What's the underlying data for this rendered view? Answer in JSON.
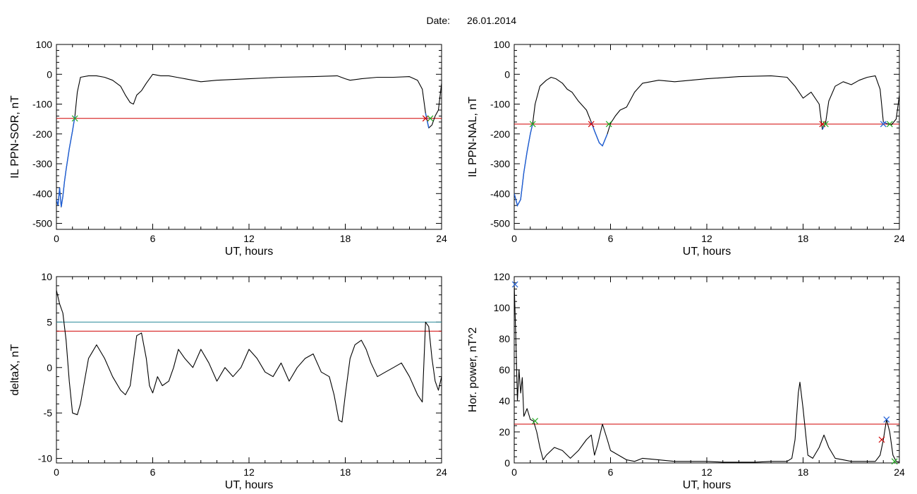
{
  "header": {
    "date_label": "Date:",
    "date_value": "26.01.2014"
  },
  "colors": {
    "trace": "#000000",
    "threshold_red": "#d00000",
    "threshold_cyan": "#2a8a9a",
    "highlight": "#1f5fd6",
    "marker_green": "#22aa22",
    "marker_red": "#d00000",
    "marker_blue": "#1f5fd6"
  },
  "chart_data": [
    {
      "id": "sor",
      "type": "line",
      "ylabel": "IL PPN-SOR, nT",
      "xlabel": "UT, hours",
      "xlim": [
        0,
        24
      ],
      "ylim": [
        -520,
        100
      ],
      "xticks": [
        0,
        6,
        12,
        18,
        24
      ],
      "yticks": [
        100,
        0,
        -100,
        -200,
        -300,
        -400,
        -500
      ],
      "series": [
        {
          "x": [
            0,
            0.1,
            0.2,
            0.3,
            0.4,
            0.5,
            0.6,
            0.8,
            1.0,
            1.15,
            1.3,
            1.5,
            2.0,
            2.5,
            3.0,
            3.5,
            4.0,
            4.3,
            4.6,
            4.8,
            5.0,
            5.3,
            5.6,
            6.0,
            6.5,
            7.0,
            7.5,
            8.0,
            9.0,
            10.0,
            12.0,
            14.0,
            16.0,
            17.5,
            18.0,
            18.3,
            19.0,
            20.0,
            21.0,
            22.0,
            22.5,
            22.8,
            23.0,
            23.2,
            23.4,
            23.6,
            23.8,
            24.0
          ],
          "y": [
            -420,
            -440,
            -380,
            -445,
            -410,
            -360,
            -320,
            -250,
            -190,
            -140,
            -60,
            -10,
            -5,
            -5,
            -10,
            -20,
            -40,
            -70,
            -95,
            -100,
            -70,
            -55,
            -30,
            0,
            -5,
            -5,
            -10,
            -15,
            -25,
            -20,
            -15,
            -10,
            -8,
            -5,
            -15,
            -20,
            -15,
            -10,
            -10,
            -8,
            -20,
            -50,
            -130,
            -180,
            -170,
            -140,
            -120,
            -30
          ]
        }
      ],
      "thresholds": [
        {
          "value": -148,
          "color": "red"
        }
      ],
      "highlight_intervals": [
        [
          0,
          1.15
        ],
        [
          23.0,
          23.3
        ]
      ],
      "markers": [
        {
          "x": 1.15,
          "y": -148,
          "color": "green"
        },
        {
          "x": 23.0,
          "y": -148,
          "color": "red"
        },
        {
          "x": 23.3,
          "y": -148,
          "color": "green"
        }
      ]
    },
    {
      "id": "nal",
      "type": "line",
      "ylabel": "IL PPN-NAL, nT",
      "xlabel": "UT, hours",
      "xlim": [
        0,
        24
      ],
      "ylim": [
        -520,
        100
      ],
      "xticks": [
        0,
        6,
        12,
        18,
        24
      ],
      "yticks": [
        100,
        0,
        -100,
        -200,
        -300,
        -400,
        -500
      ],
      "series": [
        {
          "x": [
            0,
            0.2,
            0.4,
            0.6,
            0.8,
            1.0,
            1.15,
            1.3,
            1.6,
            2.0,
            2.3,
            2.6,
            3.0,
            3.3,
            3.6,
            4.0,
            4.5,
            4.8,
            5.0,
            5.3,
            5.5,
            5.8,
            6.0,
            6.3,
            6.6,
            7.0,
            7.5,
            8.0,
            9.0,
            10.0,
            12.0,
            14.0,
            16.0,
            17.0,
            17.5,
            18.0,
            18.5,
            19.0,
            19.2,
            19.4,
            19.6,
            20.0,
            20.5,
            21.0,
            21.5,
            22.0,
            22.5,
            22.8,
            23.0,
            23.2,
            23.5,
            23.8,
            24.0
          ],
          "y": [
            -400,
            -440,
            -420,
            -330,
            -260,
            -200,
            -165,
            -100,
            -40,
            -20,
            -10,
            -15,
            -30,
            -50,
            -60,
            -90,
            -120,
            -160,
            -190,
            -230,
            -240,
            -200,
            -165,
            -140,
            -120,
            -110,
            -60,
            -30,
            -20,
            -25,
            -15,
            -8,
            -5,
            -10,
            -40,
            -80,
            -60,
            -100,
            -185,
            -165,
            -90,
            -40,
            -25,
            -35,
            -20,
            -10,
            -5,
            -50,
            -160,
            -165,
            -170,
            -150,
            -70
          ]
        }
      ],
      "thresholds": [
        {
          "value": -167,
          "color": "red"
        }
      ],
      "highlight_intervals": [
        [
          0,
          1.15
        ],
        [
          4.8,
          5.9
        ],
        [
          19.2,
          19.4
        ],
        [
          23.0,
          23.4
        ]
      ],
      "markers": [
        {
          "x": 1.15,
          "y": -167,
          "color": "green"
        },
        {
          "x": 4.8,
          "y": -167,
          "color": "red"
        },
        {
          "x": 5.9,
          "y": -167,
          "color": "green"
        },
        {
          "x": 19.2,
          "y": -167,
          "color": "red"
        },
        {
          "x": 19.4,
          "y": -167,
          "color": "green"
        },
        {
          "x": 23.0,
          "y": -167,
          "color": "blue"
        },
        {
          "x": 23.4,
          "y": -167,
          "color": "green"
        }
      ]
    },
    {
      "id": "deltax",
      "type": "line",
      "ylabel": "deltaX, nT",
      "xlabel": "UT, hours",
      "xlim": [
        0,
        24
      ],
      "ylim": [
        -10.5,
        10
      ],
      "xticks": [
        0,
        6,
        12,
        18,
        24
      ],
      "yticks": [
        10,
        5,
        0,
        -5,
        -10
      ],
      "series": [
        {
          "x": [
            0,
            0.2,
            0.4,
            0.6,
            0.8,
            1.0,
            1.3,
            1.5,
            1.8,
            2.0,
            2.5,
            3.0,
            3.5,
            4.0,
            4.3,
            4.6,
            5.0,
            5.3,
            5.6,
            5.8,
            6.0,
            6.3,
            6.6,
            7.0,
            7.3,
            7.6,
            8.0,
            8.5,
            9.0,
            9.5,
            10.0,
            10.5,
            11.0,
            11.5,
            12.0,
            12.5,
            13.0,
            13.5,
            14.0,
            14.5,
            15.0,
            15.5,
            16.0,
            16.5,
            17.0,
            17.3,
            17.6,
            17.8,
            18.0,
            18.3,
            18.6,
            19.0,
            19.3,
            19.6,
            20.0,
            20.5,
            21.0,
            21.5,
            22.0,
            22.5,
            22.8,
            23.0,
            23.2,
            23.4,
            23.6,
            23.8,
            24.0
          ],
          "y": [
            8.5,
            7,
            6,
            3,
            -1.5,
            -5,
            -5.2,
            -4,
            -1,
            1,
            2.5,
            1,
            -1,
            -2.5,
            -3,
            -2,
            3.5,
            3.8,
            1,
            -2,
            -2.8,
            -1,
            -2,
            -1.5,
            0,
            2,
            1,
            0,
            2,
            0.5,
            -1.5,
            0,
            -1,
            0,
            2,
            1,
            -0.5,
            -1,
            0.5,
            -1.5,
            0,
            1,
            1.5,
            -0.5,
            -1,
            -3,
            -5.8,
            -6,
            -3,
            1,
            2.5,
            3,
            2,
            0.5,
            -1,
            -0.5,
            0,
            0.5,
            -1,
            -3,
            -3.8,
            5,
            4.5,
            1,
            -1.5,
            -2.5,
            -1
          ]
        }
      ],
      "thresholds": [
        {
          "value": 5,
          "color": "cyan"
        },
        {
          "value": 4,
          "color": "red"
        }
      ],
      "highlight_intervals": [],
      "markers": []
    },
    {
      "id": "power",
      "type": "line",
      "ylabel": "Hor. power, nT^2",
      "xlabel": "UT, hours",
      "xlim": [
        0,
        24
      ],
      "ylim": [
        0,
        120
      ],
      "xticks": [
        0,
        6,
        12,
        18,
        24
      ],
      "yticks": [
        120,
        100,
        80,
        60,
        40,
        20,
        0
      ],
      "series": [
        {
          "x": [
            0,
            0.1,
            0.2,
            0.3,
            0.4,
            0.5,
            0.6,
            0.8,
            1.0,
            1.2,
            1.4,
            1.6,
            1.8,
            2.0,
            2.5,
            3.0,
            3.5,
            4.0,
            4.5,
            4.8,
            5.0,
            5.2,
            5.5,
            5.8,
            6.0,
            6.5,
            7.0,
            7.5,
            8.0,
            9.0,
            10.0,
            11.0,
            12.0,
            13.0,
            14.0,
            15.0,
            16.0,
            16.5,
            17.0,
            17.3,
            17.5,
            17.7,
            17.8,
            18.0,
            18.3,
            18.6,
            19.0,
            19.3,
            19.6,
            20.0,
            20.5,
            21.0,
            22.0,
            22.5,
            22.8,
            23.0,
            23.2,
            23.4,
            23.6,
            23.8,
            24.0
          ],
          "y": [
            115,
            80,
            40,
            60,
            45,
            55,
            30,
            35,
            28,
            27,
            20,
            10,
            2,
            5,
            10,
            8,
            3,
            8,
            15,
            18,
            5,
            12,
            25,
            15,
            8,
            5,
            2,
            1,
            3,
            2,
            1,
            1,
            1,
            0.5,
            0.5,
            0.5,
            1,
            1,
            1,
            3,
            15,
            45,
            52,
            35,
            5,
            3,
            10,
            18,
            10,
            3,
            2,
            1,
            1,
            1,
            5,
            15,
            28,
            20,
            5,
            1,
            0.5
          ]
        }
      ],
      "thresholds": [
        {
          "value": 25,
          "color": "red"
        }
      ],
      "highlight_intervals": [],
      "markers": [
        {
          "x": 0.05,
          "y": 115,
          "color": "blue"
        },
        {
          "x": 1.3,
          "y": 27,
          "color": "green"
        },
        {
          "x": 22.9,
          "y": 15,
          "color": "red"
        },
        {
          "x": 23.2,
          "y": 28,
          "color": "blue"
        },
        {
          "x": 23.7,
          "y": 1,
          "color": "green"
        }
      ]
    }
  ]
}
